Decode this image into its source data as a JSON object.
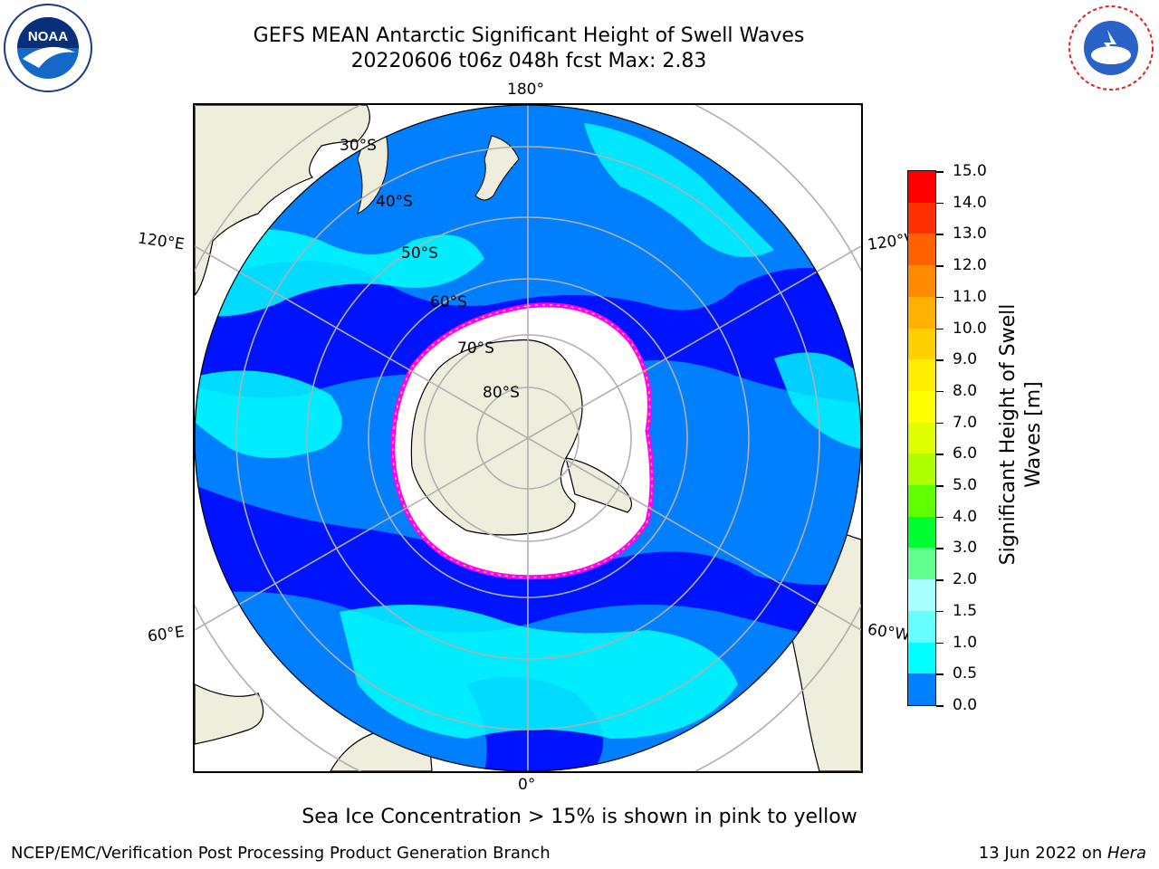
{
  "header": {
    "title_line1": "GEFS MEAN Antarctic Significant Height of Swell Waves",
    "title_line2": "20220606 t06z 048h fcst   Max: 2.83"
  },
  "logos": {
    "left": "noaa-logo",
    "right": "national-weather-service-logo"
  },
  "map": {
    "projection": "south-polar-stereographic",
    "longitude_labels": {
      "top": "180°",
      "bottom": "0°",
      "left_upper": "120°E",
      "left_lower": "60°E",
      "right_upper": "120°W",
      "right_lower": "60°W"
    },
    "latitude_labels": [
      "30°S",
      "40°S",
      "50°S",
      "60°S",
      "70°S",
      "80°S"
    ],
    "colors": {
      "land": "#efeddc",
      "ocean_low": "#0000ff",
      "ocean_mid": "#0080ff",
      "ocean_high": "#00ffff",
      "ice_edge": "#ff00ff",
      "ice_edge_yellow": "#ffcc00",
      "graticule": "#b0b0b0"
    }
  },
  "colorbar": {
    "title_line1": "Significant Height of Swell",
    "title_line2": "Waves [m]",
    "ticks": [
      "15.0",
      "14.0",
      "13.0",
      "12.0",
      "11.0",
      "10.0",
      "9.0",
      "8.0",
      "7.0",
      "6.0",
      "5.0",
      "4.0",
      "3.0",
      "2.0",
      "1.5",
      "1.0",
      "0.5",
      "0.0"
    ],
    "colors": [
      "#ff0000",
      "#ff3000",
      "#ff6000",
      "#ff8c00",
      "#ffb000",
      "#ffd000",
      "#ffee00",
      "#ffff00",
      "#e0ff00",
      "#b0ff00",
      "#60ff00",
      "#00ff30",
      "#60ff90",
      "#aaffff",
      "#66ffff",
      "#00ffff",
      "#0080ff",
      "#0000ff"
    ]
  },
  "caption": "Sea Ice Concentration > 15% is shown in pink to yellow",
  "footer": {
    "left": "NCEP/EMC/Verification Post Processing Product Generation Branch",
    "right_date": "13 Jun 2022 on ",
    "right_machine": "Hera"
  }
}
